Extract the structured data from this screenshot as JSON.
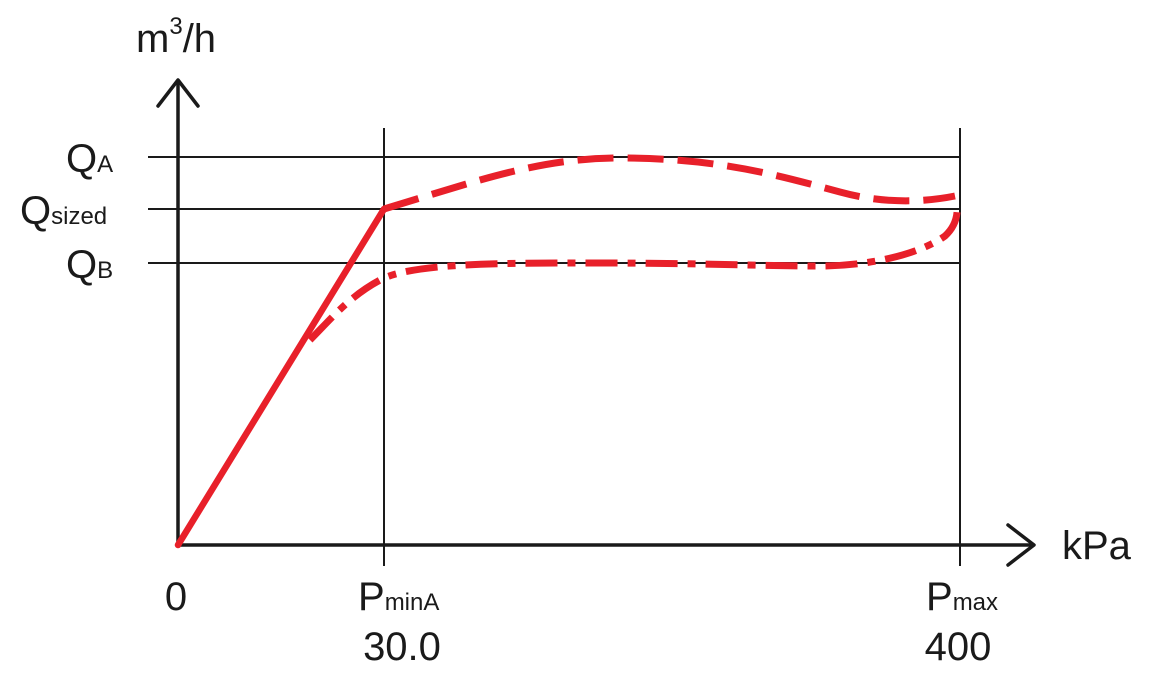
{
  "axes": {
    "y_unit_base": "m",
    "y_unit_exp": "3",
    "y_unit_tail": "/h",
    "x_unit": "kPa"
  },
  "y_labels": {
    "qa": {
      "main": "Q",
      "sub": "A"
    },
    "qsized": {
      "main": "Q",
      "sub": "sized"
    },
    "qb": {
      "main": "Q",
      "sub": "B"
    }
  },
  "x_labels": {
    "origin": "0",
    "pmin": {
      "main": "P",
      "sub": "minA",
      "value": "30.0"
    },
    "pmax": {
      "main": "P",
      "sub": "max",
      "value": "400"
    }
  },
  "colors": {
    "curve": "#e8202a",
    "lines": "#1a1a1a"
  }
}
